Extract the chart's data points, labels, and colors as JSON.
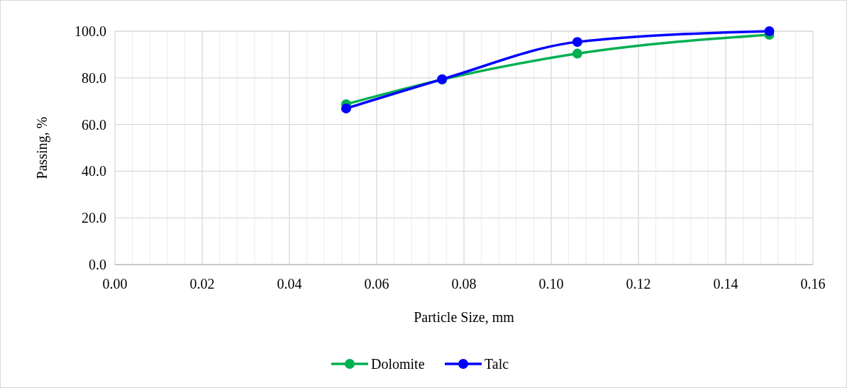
{
  "chart_data": {
    "type": "line",
    "xlabel": "Particle Size, mm",
    "ylabel": "Passing, %",
    "xlim": [
      0,
      0.16
    ],
    "xticks": [
      {
        "value": 0,
        "label": "0.00"
      },
      {
        "value": 0.02,
        "label": "0.02"
      },
      {
        "value": 0.04,
        "label": "0.04"
      },
      {
        "value": 0.06,
        "label": "0.06"
      },
      {
        "value": 0.08,
        "label": "0.08"
      },
      {
        "value": 0.1,
        "label": "0.10"
      },
      {
        "value": 0.12,
        "label": "0.12"
      },
      {
        "value": 0.14,
        "label": "0.14"
      },
      {
        "value": 0.16,
        "label": "0.16"
      }
    ],
    "ylim": [
      0,
      100
    ],
    "yticks": [
      {
        "value": 0,
        "label": "0.0"
      },
      {
        "value": 20,
        "label": "20.0"
      },
      {
        "value": 40,
        "label": "40.0"
      },
      {
        "value": 60,
        "label": "60.0"
      },
      {
        "value": 80,
        "label": "80.0"
      },
      {
        "value": 100,
        "label": "100.0"
      }
    ],
    "x": [
      0.053,
      0.075,
      0.106,
      0.15
    ],
    "series": [
      {
        "name": "Dolomite",
        "color": "#00b050",
        "values": [
          68.7,
          79.3,
          90.4,
          98.5
        ]
      },
      {
        "name": "Talc",
        "color": "#0000ff",
        "values": [
          66.9,
          79.4,
          95.4,
          100
        ]
      }
    ],
    "grid": true,
    "legend": "bottom",
    "marker": "circle"
  }
}
